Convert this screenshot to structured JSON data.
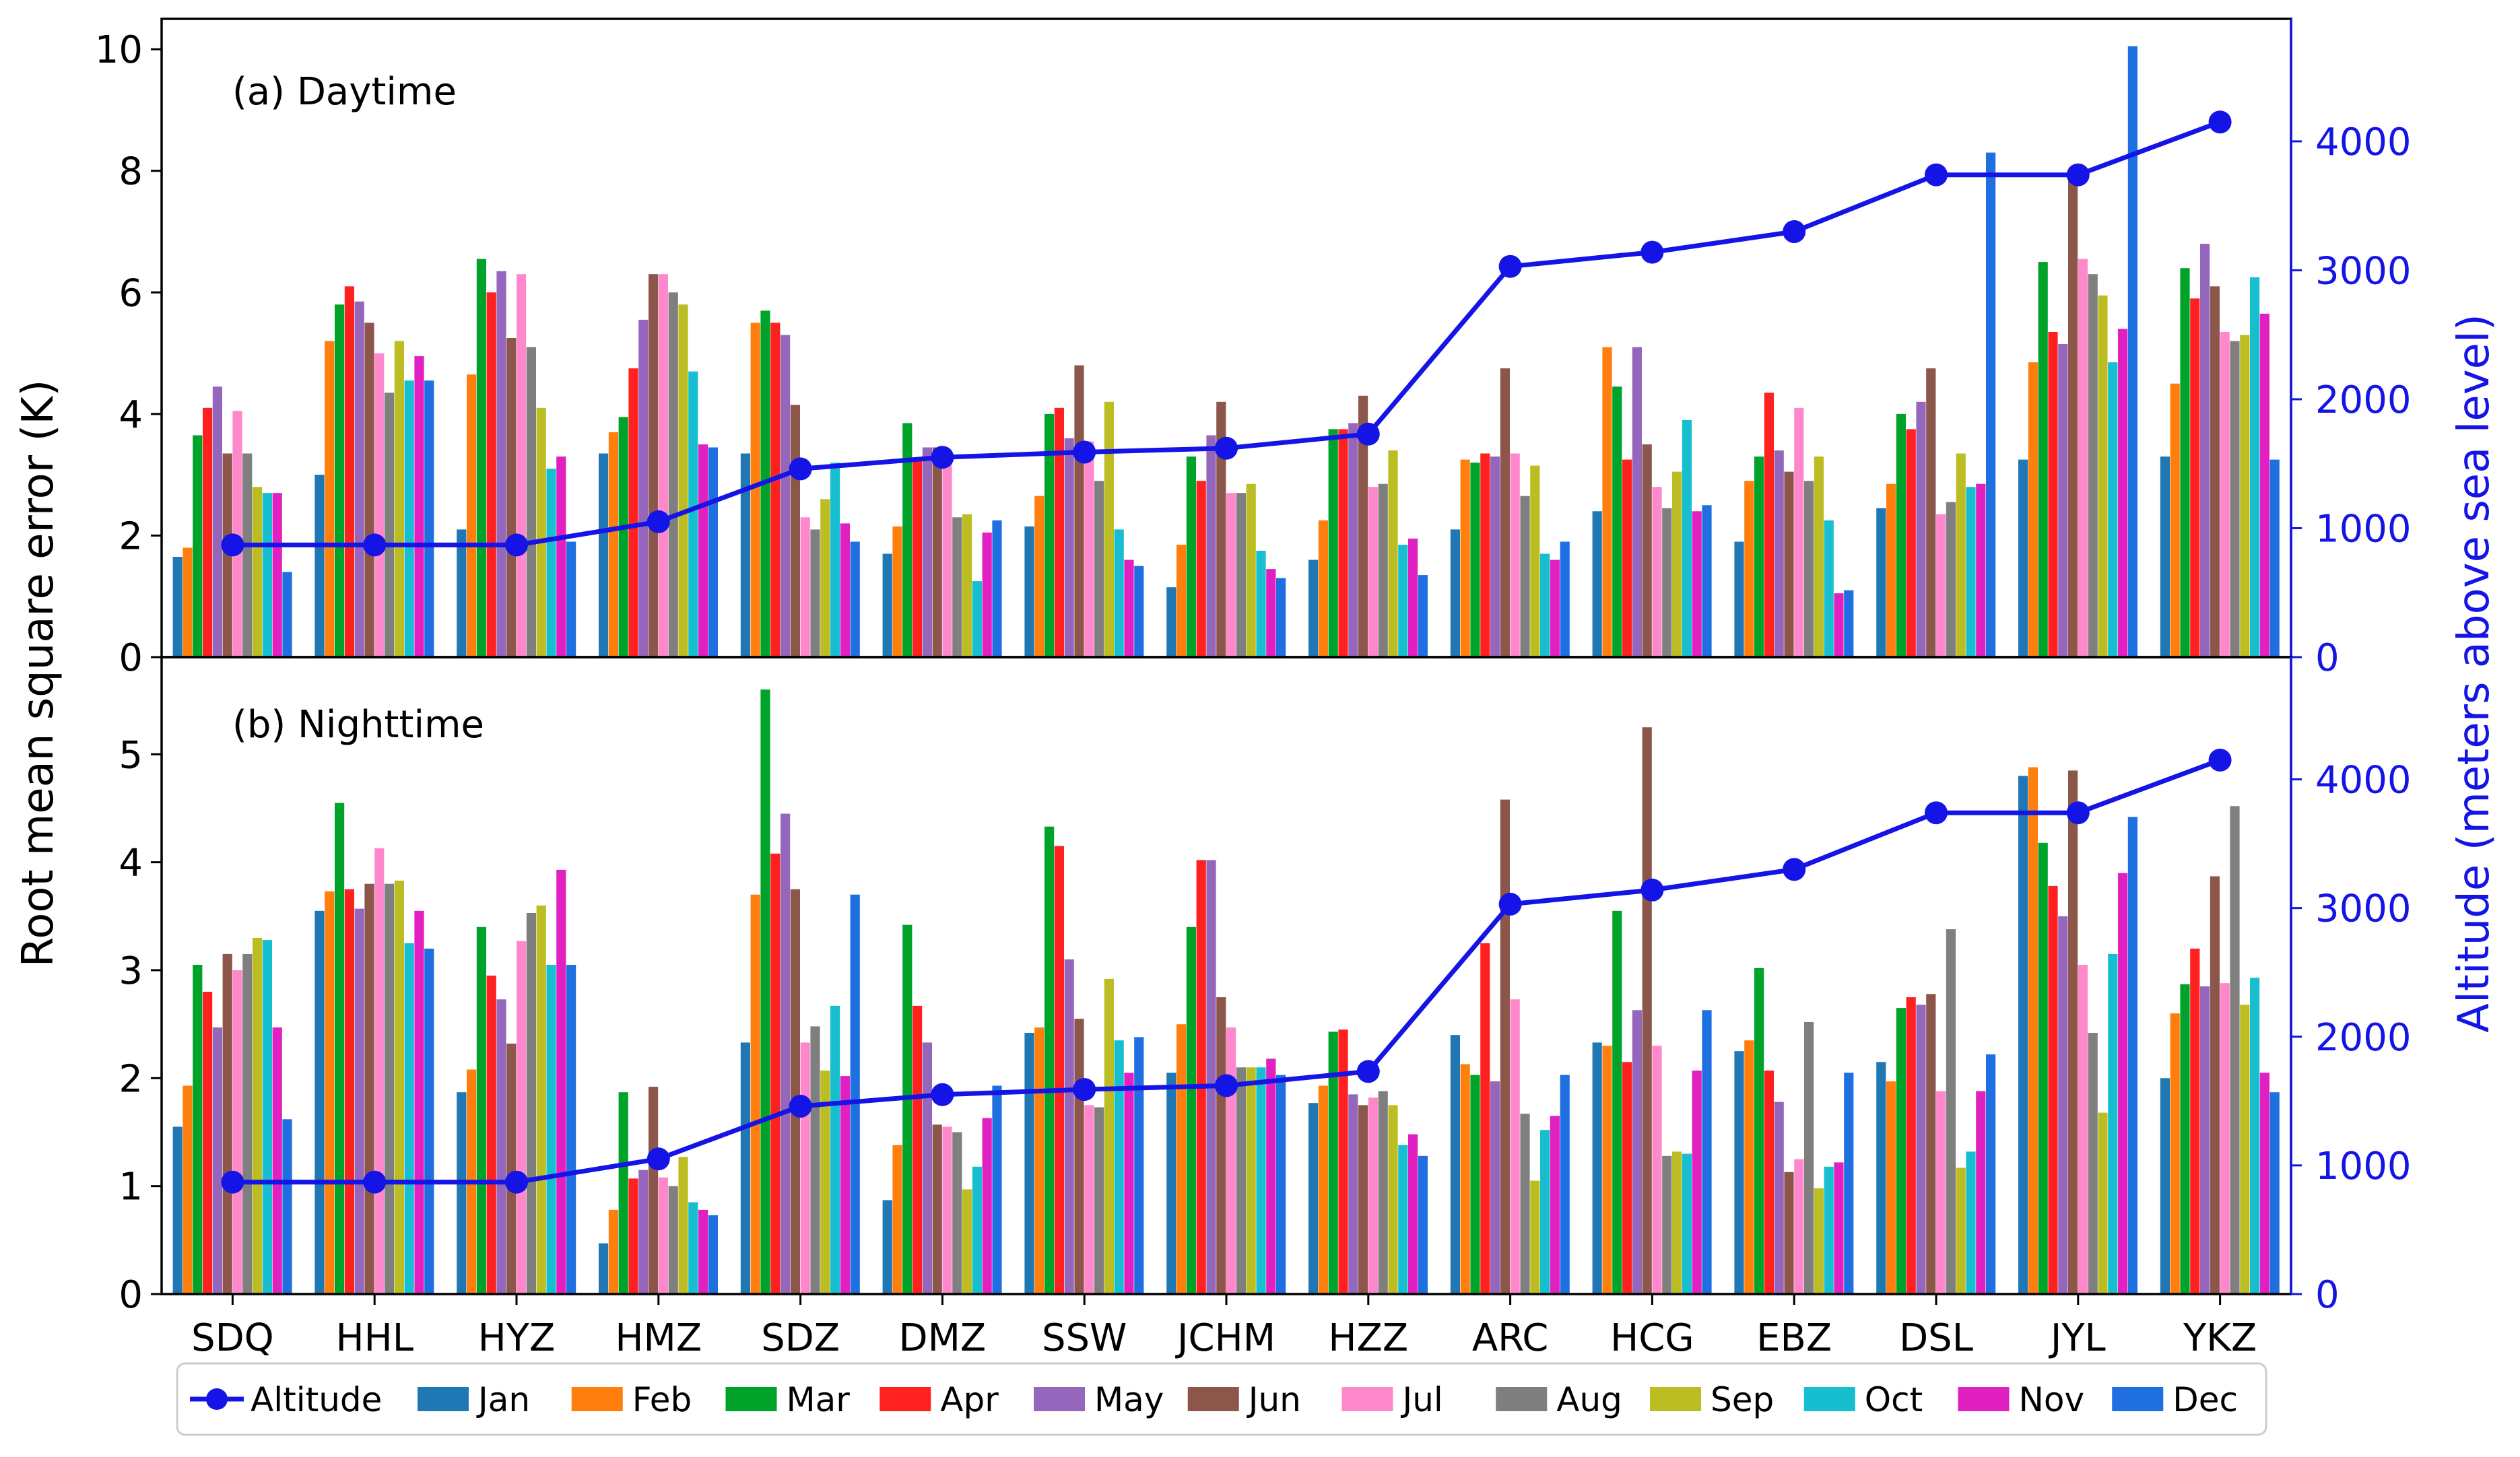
{
  "chart_data": {
    "type": "bar",
    "stations": [
      "SDQ",
      "HHL",
      "HYZ",
      "HMZ",
      "SDZ",
      "DMZ",
      "SSW",
      "JCHM",
      "HZZ",
      "ARC",
      "HCG",
      "EBZ",
      "DSL",
      "JYL",
      "YKZ"
    ],
    "months": [
      "Jan",
      "Feb",
      "Mar",
      "Apr",
      "May",
      "Jun",
      "Jul",
      "Aug",
      "Sep",
      "Oct",
      "Nov",
      "Dec"
    ],
    "month_colors": [
      "#1f77b4",
      "#ff7f0e",
      "#00a32a",
      "#ff2020",
      "#9467bd",
      "#8c564b",
      "#ff88cc",
      "#7f7f7f",
      "#bcbd22",
      "#17becf",
      "#e020c0",
      "#1f6fe0"
    ],
    "ylabel": "Root mean square error (K)",
    "ylabel_right": "Altitude (meters above sea level)",
    "altitude": {
      "label": "Altitude",
      "color": "#1414e6",
      "values": [
        870,
        870,
        870,
        1050,
        1460,
        1550,
        1590,
        1620,
        1730,
        3030,
        3140,
        3300,
        3740,
        3740,
        4150
      ]
    },
    "panels": [
      {
        "title": "(a) Daytime",
        "ylim": [
          0,
          10.5
        ],
        "yticks": [
          0,
          2,
          4,
          6,
          8,
          10
        ],
        "ylim_right": [
          0,
          4950
        ],
        "yticks_right": [
          0,
          1000,
          2000,
          3000,
          4000
        ],
        "values": [
          [
            1.65,
            1.8,
            3.65,
            4.1,
            4.45,
            3.35,
            4.05,
            3.35,
            2.8,
            2.7,
            2.7,
            1.4
          ],
          [
            3.0,
            5.2,
            5.8,
            6.1,
            5.85,
            5.5,
            5.0,
            4.35,
            5.2,
            4.55,
            4.95,
            4.55
          ],
          [
            2.1,
            4.65,
            6.55,
            6.0,
            6.35,
            5.25,
            6.3,
            5.1,
            4.1,
            3.1,
            3.3,
            1.9
          ],
          [
            3.35,
            3.7,
            3.95,
            4.75,
            5.55,
            6.3,
            6.3,
            6.0,
            5.8,
            4.7,
            3.5,
            3.45
          ],
          [
            3.35,
            5.5,
            5.7,
            5.5,
            5.3,
            4.15,
            2.3,
            2.1,
            2.6,
            3.2,
            2.2,
            1.9
          ],
          [
            1.7,
            2.15,
            3.85,
            3.25,
            3.45,
            3.45,
            3.25,
            2.3,
            2.35,
            1.25,
            2.05,
            2.25
          ],
          [
            2.15,
            2.65,
            4.0,
            4.1,
            3.6,
            4.8,
            3.55,
            2.9,
            4.2,
            2.1,
            1.6,
            1.5
          ],
          [
            1.15,
            1.85,
            3.3,
            2.9,
            3.65,
            4.2,
            2.7,
            2.7,
            2.85,
            1.75,
            1.45,
            1.3
          ],
          [
            1.6,
            2.25,
            3.75,
            3.75,
            3.85,
            4.3,
            2.8,
            2.85,
            3.4,
            1.85,
            1.95,
            1.35
          ],
          [
            2.1,
            3.25,
            3.2,
            3.35,
            3.3,
            4.75,
            3.35,
            2.65,
            3.15,
            1.7,
            1.6,
            1.9
          ],
          [
            2.4,
            5.1,
            4.45,
            3.25,
            5.1,
            3.5,
            2.8,
            2.45,
            3.05,
            3.9,
            2.4,
            2.5
          ],
          [
            1.9,
            2.9,
            3.3,
            4.35,
            3.4,
            3.05,
            4.1,
            2.9,
            3.3,
            2.25,
            1.05,
            1.1
          ],
          [
            2.45,
            2.85,
            4.0,
            3.75,
            4.2,
            4.75,
            2.35,
            2.55,
            3.35,
            2.8,
            2.85,
            8.3
          ],
          [
            3.25,
            4.85,
            6.5,
            5.35,
            5.15,
            8.0,
            6.55,
            6.3,
            5.95,
            4.85,
            5.4,
            10.05
          ],
          [
            3.3,
            4.5,
            6.4,
            5.9,
            6.8,
            6.1,
            5.35,
            5.2,
            5.3,
            6.25,
            5.65,
            3.25
          ]
        ]
      },
      {
        "title": "(b) Nighttime",
        "ylim": [
          0,
          5.9
        ],
        "yticks": [
          0,
          1,
          2,
          3,
          4,
          5
        ],
        "ylim_right": [
          0,
          4950
        ],
        "yticks_right": [
          0,
          1000,
          2000,
          3000,
          4000
        ],
        "values": [
          [
            1.55,
            1.93,
            3.05,
            2.8,
            2.47,
            3.15,
            3.0,
            3.15,
            3.3,
            3.28,
            2.47,
            1.62
          ],
          [
            3.55,
            3.73,
            4.55,
            3.75,
            3.57,
            3.8,
            4.13,
            3.8,
            3.83,
            3.25,
            3.55,
            3.2
          ],
          [
            1.87,
            2.08,
            3.4,
            2.95,
            2.73,
            2.32,
            3.27,
            3.53,
            3.6,
            3.05,
            3.93,
            3.05
          ],
          [
            0.47,
            0.78,
            1.87,
            1.07,
            1.15,
            1.92,
            1.08,
            1.0,
            1.27,
            0.85,
            0.78,
            0.73
          ],
          [
            2.33,
            3.7,
            5.6,
            4.08,
            4.45,
            3.75,
            2.33,
            2.48,
            2.07,
            2.67,
            2.02,
            3.7
          ],
          [
            0.87,
            1.38,
            3.42,
            2.67,
            2.33,
            1.57,
            1.55,
            1.5,
            0.97,
            1.18,
            1.63,
            1.93
          ],
          [
            2.42,
            2.47,
            4.33,
            4.15,
            3.1,
            2.55,
            1.75,
            1.73,
            2.92,
            2.35,
            2.05,
            2.38
          ],
          [
            2.05,
            2.5,
            3.4,
            4.02,
            4.02,
            2.75,
            2.47,
            2.1,
            2.1,
            2.1,
            2.18,
            2.03
          ],
          [
            1.77,
            1.93,
            2.43,
            2.45,
            1.85,
            1.75,
            1.82,
            1.88,
            1.75,
            1.38,
            1.48,
            1.28
          ],
          [
            2.4,
            2.13,
            2.03,
            3.25,
            1.97,
            4.58,
            2.73,
            1.67,
            1.05,
            1.52,
            1.65,
            2.03
          ],
          [
            2.33,
            2.3,
            3.55,
            2.15,
            2.63,
            5.25,
            2.3,
            1.28,
            1.32,
            1.3,
            2.07,
            2.63
          ],
          [
            2.25,
            2.35,
            3.02,
            2.07,
            1.78,
            1.13,
            1.25,
            2.52,
            0.98,
            1.18,
            1.22,
            2.05
          ],
          [
            2.15,
            1.97,
            2.65,
            2.75,
            2.68,
            2.78,
            1.88,
            3.38,
            1.17,
            1.32,
            1.88,
            2.22
          ],
          [
            4.8,
            4.88,
            4.18,
            3.78,
            3.5,
            4.85,
            3.05,
            2.42,
            1.68,
            3.15,
            3.9,
            4.42
          ],
          [
            2.0,
            2.6,
            2.87,
            3.2,
            2.85,
            3.87,
            2.88,
            4.52,
            2.68,
            2.93,
            2.05,
            1.87
          ]
        ]
      }
    ]
  }
}
